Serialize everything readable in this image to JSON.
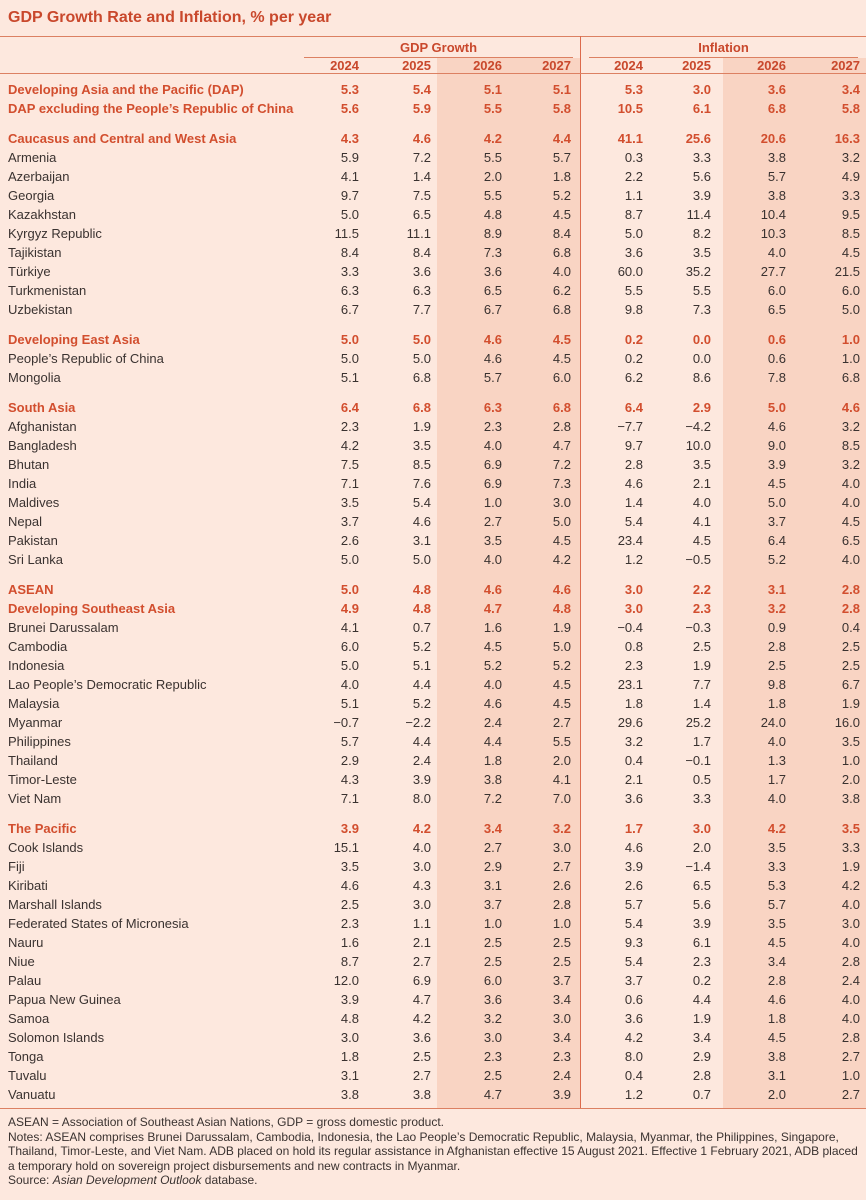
{
  "title": "GDP Growth Rate and Inflation, % per year",
  "colors": {
    "accent": "#c9482c",
    "background": "#fde8de",
    "forecast_shade": "#f9d4c3"
  },
  "groups": [
    {
      "label": "GDP Growth"
    },
    {
      "label": "Inflation"
    }
  ],
  "years": [
    "2024",
    "2025",
    "2026",
    "2027",
    "2024",
    "2025",
    "2026",
    "2027"
  ],
  "sections": [
    {
      "rows": [
        {
          "name": "Developing Asia and the Pacific (DAP)",
          "aggregate": true,
          "values": [
            "5.3",
            "5.4",
            "5.1",
            "5.1",
            "5.3",
            "3.0",
            "3.6",
            "3.4"
          ]
        },
        {
          "name": "DAP excluding the People’s Republic of China",
          "aggregate": true,
          "values": [
            "5.6",
            "5.9",
            "5.5",
            "5.8",
            "10.5",
            "6.1",
            "6.8",
            "5.8"
          ]
        }
      ]
    },
    {
      "rows": [
        {
          "name": "Caucasus and Central and West Asia",
          "aggregate": true,
          "values": [
            "4.3",
            "4.6",
            "4.2",
            "4.4",
            "41.1",
            "25.6",
            "20.6",
            "16.3"
          ]
        },
        {
          "name": "Armenia",
          "values": [
            "5.9",
            "7.2",
            "5.5",
            "5.7",
            "0.3",
            "3.3",
            "3.8",
            "3.2"
          ]
        },
        {
          "name": "Azerbaijan",
          "values": [
            "4.1",
            "1.4",
            "2.0",
            "1.8",
            "2.2",
            "5.6",
            "5.7",
            "4.9"
          ]
        },
        {
          "name": "Georgia",
          "values": [
            "9.7",
            "7.5",
            "5.5",
            "5.2",
            "1.1",
            "3.9",
            "3.8",
            "3.3"
          ]
        },
        {
          "name": "Kazakhstan",
          "values": [
            "5.0",
            "6.5",
            "4.8",
            "4.5",
            "8.7",
            "11.4",
            "10.4",
            "9.5"
          ]
        },
        {
          "name": "Kyrgyz Republic",
          "values": [
            "11.5",
            "11.1",
            "8.9",
            "8.4",
            "5.0",
            "8.2",
            "10.3",
            "8.5"
          ]
        },
        {
          "name": "Tajikistan",
          "values": [
            "8.4",
            "8.4",
            "7.3",
            "6.8",
            "3.6",
            "3.5",
            "4.0",
            "4.5"
          ]
        },
        {
          "name": "Türkiye",
          "values": [
            "3.3",
            "3.6",
            "3.6",
            "4.0",
            "60.0",
            "35.2",
            "27.7",
            "21.5"
          ]
        },
        {
          "name": "Turkmenistan",
          "values": [
            "6.3",
            "6.3",
            "6.5",
            "6.2",
            "5.5",
            "5.5",
            "6.0",
            "6.0"
          ]
        },
        {
          "name": "Uzbekistan",
          "values": [
            "6.7",
            "7.7",
            "6.7",
            "6.8",
            "9.8",
            "7.3",
            "6.5",
            "5.0"
          ]
        }
      ]
    },
    {
      "rows": [
        {
          "name": "Developing East Asia",
          "aggregate": true,
          "values": [
            "5.0",
            "5.0",
            "4.6",
            "4.5",
            "0.2",
            "0.0",
            "0.6",
            "1.0"
          ]
        },
        {
          "name": "People’s Republic of China",
          "values": [
            "5.0",
            "5.0",
            "4.6",
            "4.5",
            "0.2",
            "0.0",
            "0.6",
            "1.0"
          ]
        },
        {
          "name": "Mongolia",
          "values": [
            "5.1",
            "6.8",
            "5.7",
            "6.0",
            "6.2",
            "8.6",
            "7.8",
            "6.8"
          ]
        }
      ]
    },
    {
      "rows": [
        {
          "name": "South Asia",
          "aggregate": true,
          "values": [
            "6.4",
            "6.8",
            "6.3",
            "6.8",
            "6.4",
            "2.9",
            "5.0",
            "4.6"
          ]
        },
        {
          "name": "Afghanistan",
          "values": [
            "2.3",
            "1.9",
            "2.3",
            "2.8",
            "−7.7",
            "−4.2",
            "4.6",
            "3.2"
          ]
        },
        {
          "name": "Bangladesh",
          "values": [
            "4.2",
            "3.5",
            "4.0",
            "4.7",
            "9.7",
            "10.0",
            "9.0",
            "8.5"
          ]
        },
        {
          "name": "Bhutan",
          "values": [
            "7.5",
            "8.5",
            "6.9",
            "7.2",
            "2.8",
            "3.5",
            "3.9",
            "3.2"
          ]
        },
        {
          "name": "India",
          "values": [
            "7.1",
            "7.6",
            "6.9",
            "7.3",
            "4.6",
            "2.1",
            "4.5",
            "4.0"
          ]
        },
        {
          "name": "Maldives",
          "values": [
            "3.5",
            "5.4",
            "1.0",
            "3.0",
            "1.4",
            "4.0",
            "5.0",
            "4.0"
          ]
        },
        {
          "name": "Nepal",
          "values": [
            "3.7",
            "4.6",
            "2.7",
            "5.0",
            "5.4",
            "4.1",
            "3.7",
            "4.5"
          ]
        },
        {
          "name": "Pakistan",
          "values": [
            "2.6",
            "3.1",
            "3.5",
            "4.5",
            "23.4",
            "4.5",
            "6.4",
            "6.5"
          ]
        },
        {
          "name": "Sri Lanka",
          "values": [
            "5.0",
            "5.0",
            "4.0",
            "4.2",
            "1.2",
            "−0.5",
            "5.2",
            "4.0"
          ]
        }
      ]
    },
    {
      "rows": [
        {
          "name": "ASEAN",
          "aggregate": true,
          "values": [
            "5.0",
            "4.8",
            "4.6",
            "4.6",
            "3.0",
            "2.2",
            "3.1",
            "2.8"
          ]
        },
        {
          "name": "Developing Southeast Asia",
          "aggregate": true,
          "values": [
            "4.9",
            "4.8",
            "4.7",
            "4.8",
            "3.0",
            "2.3",
            "3.2",
            "2.8"
          ]
        },
        {
          "name": "Brunei Darussalam",
          "values": [
            "4.1",
            "0.7",
            "1.6",
            "1.9",
            "−0.4",
            "−0.3",
            "0.9",
            "0.4"
          ]
        },
        {
          "name": "Cambodia",
          "values": [
            "6.0",
            "5.2",
            "4.5",
            "5.0",
            "0.8",
            "2.5",
            "2.8",
            "2.5"
          ]
        },
        {
          "name": "Indonesia",
          "values": [
            "5.0",
            "5.1",
            "5.2",
            "5.2",
            "2.3",
            "1.9",
            "2.5",
            "2.5"
          ]
        },
        {
          "name": "Lao People’s Democratic Republic",
          "values": [
            "4.0",
            "4.4",
            "4.0",
            "4.5",
            "23.1",
            "7.7",
            "9.8",
            "6.7"
          ]
        },
        {
          "name": "Malaysia",
          "values": [
            "5.1",
            "5.2",
            "4.6",
            "4.5",
            "1.8",
            "1.4",
            "1.8",
            "1.9"
          ]
        },
        {
          "name": "Myanmar",
          "values": [
            "−0.7",
            "−2.2",
            "2.4",
            "2.7",
            "29.6",
            "25.2",
            "24.0",
            "16.0"
          ]
        },
        {
          "name": "Philippines",
          "values": [
            "5.7",
            "4.4",
            "4.4",
            "5.5",
            "3.2",
            "1.7",
            "4.0",
            "3.5"
          ]
        },
        {
          "name": "Thailand",
          "values": [
            "2.9",
            "2.4",
            "1.8",
            "2.0",
            "0.4",
            "−0.1",
            "1.3",
            "1.0"
          ]
        },
        {
          "name": "Timor-Leste",
          "values": [
            "4.3",
            "3.9",
            "3.8",
            "4.1",
            "2.1",
            "0.5",
            "1.7",
            "2.0"
          ]
        },
        {
          "name": "Viet Nam",
          "values": [
            "7.1",
            "8.0",
            "7.2",
            "7.0",
            "3.6",
            "3.3",
            "4.0",
            "3.8"
          ]
        }
      ]
    },
    {
      "rows": [
        {
          "name": "The Pacific",
          "aggregate": true,
          "values": [
            "3.9",
            "4.2",
            "3.4",
            "3.2",
            "1.7",
            "3.0",
            "4.2",
            "3.5"
          ]
        },
        {
          "name": "Cook Islands",
          "values": [
            "15.1",
            "4.0",
            "2.7",
            "3.0",
            "4.6",
            "2.0",
            "3.5",
            "3.3"
          ]
        },
        {
          "name": "Fiji",
          "values": [
            "3.5",
            "3.0",
            "2.9",
            "2.7",
            "3.9",
            "−1.4",
            "3.3",
            "1.9"
          ]
        },
        {
          "name": "Kiribati",
          "values": [
            "4.6",
            "4.3",
            "3.1",
            "2.6",
            "2.6",
            "6.5",
            "5.3",
            "4.2"
          ]
        },
        {
          "name": "Marshall Islands",
          "values": [
            "2.5",
            "3.0",
            "3.7",
            "2.8",
            "5.7",
            "5.6",
            "5.7",
            "4.0"
          ]
        },
        {
          "name": "Federated States of Micronesia",
          "values": [
            "2.3",
            "1.1",
            "1.0",
            "1.0",
            "5.4",
            "3.9",
            "3.5",
            "3.0"
          ]
        },
        {
          "name": "Nauru",
          "values": [
            "1.6",
            "2.1",
            "2.5",
            "2.5",
            "9.3",
            "6.1",
            "4.5",
            "4.0"
          ]
        },
        {
          "name": "Niue",
          "values": [
            "8.7",
            "2.7",
            "2.5",
            "2.5",
            "5.4",
            "2.3",
            "3.4",
            "2.8"
          ]
        },
        {
          "name": "Palau",
          "values": [
            "12.0",
            "6.9",
            "6.0",
            "3.7",
            "3.7",
            "0.2",
            "2.8",
            "2.4"
          ]
        },
        {
          "name": "Papua New Guinea",
          "values": [
            "3.9",
            "4.7",
            "3.6",
            "3.4",
            "0.6",
            "4.4",
            "4.6",
            "4.0"
          ]
        },
        {
          "name": "Samoa",
          "values": [
            "4.8",
            "4.2",
            "3.2",
            "3.0",
            "3.6",
            "1.9",
            "1.8",
            "4.0"
          ]
        },
        {
          "name": "Solomon Islands",
          "values": [
            "3.0",
            "3.6",
            "3.0",
            "3.4",
            "4.2",
            "3.4",
            "4.5",
            "2.8"
          ]
        },
        {
          "name": "Tonga",
          "values": [
            "1.8",
            "2.5",
            "2.3",
            "2.3",
            "8.0",
            "2.9",
            "3.8",
            "2.7"
          ]
        },
        {
          "name": "Tuvalu",
          "values": [
            "3.1",
            "2.7",
            "2.5",
            "2.4",
            "0.4",
            "2.8",
            "3.1",
            "1.0"
          ]
        },
        {
          "name": "Vanuatu",
          "values": [
            "3.8",
            "3.8",
            "4.7",
            "3.9",
            "1.2",
            "0.7",
            "2.0",
            "2.7"
          ]
        }
      ]
    }
  ],
  "notes": {
    "abbreviations": "ASEAN = Association of Southeast Asian Nations, GDP = gross domestic product.",
    "notes": "Notes: ASEAN comprises Brunei Darussalam, Cambodia, Indonesia, the Lao People’s Democratic Republic, Malaysia, Myanmar, the Philippines, Singapore, Thailand, Timor-Leste, and Viet Nam. ADB placed on hold its regular assistance in Afghanistan effective 15 August 2021. Effective 1 February 2021, ADB placed a temporary hold on sovereign project disbursements and new contracts in Myanmar.",
    "source_prefix": "Source: ",
    "source_title": "Asian Development Outlook",
    "source_suffix": " database."
  }
}
